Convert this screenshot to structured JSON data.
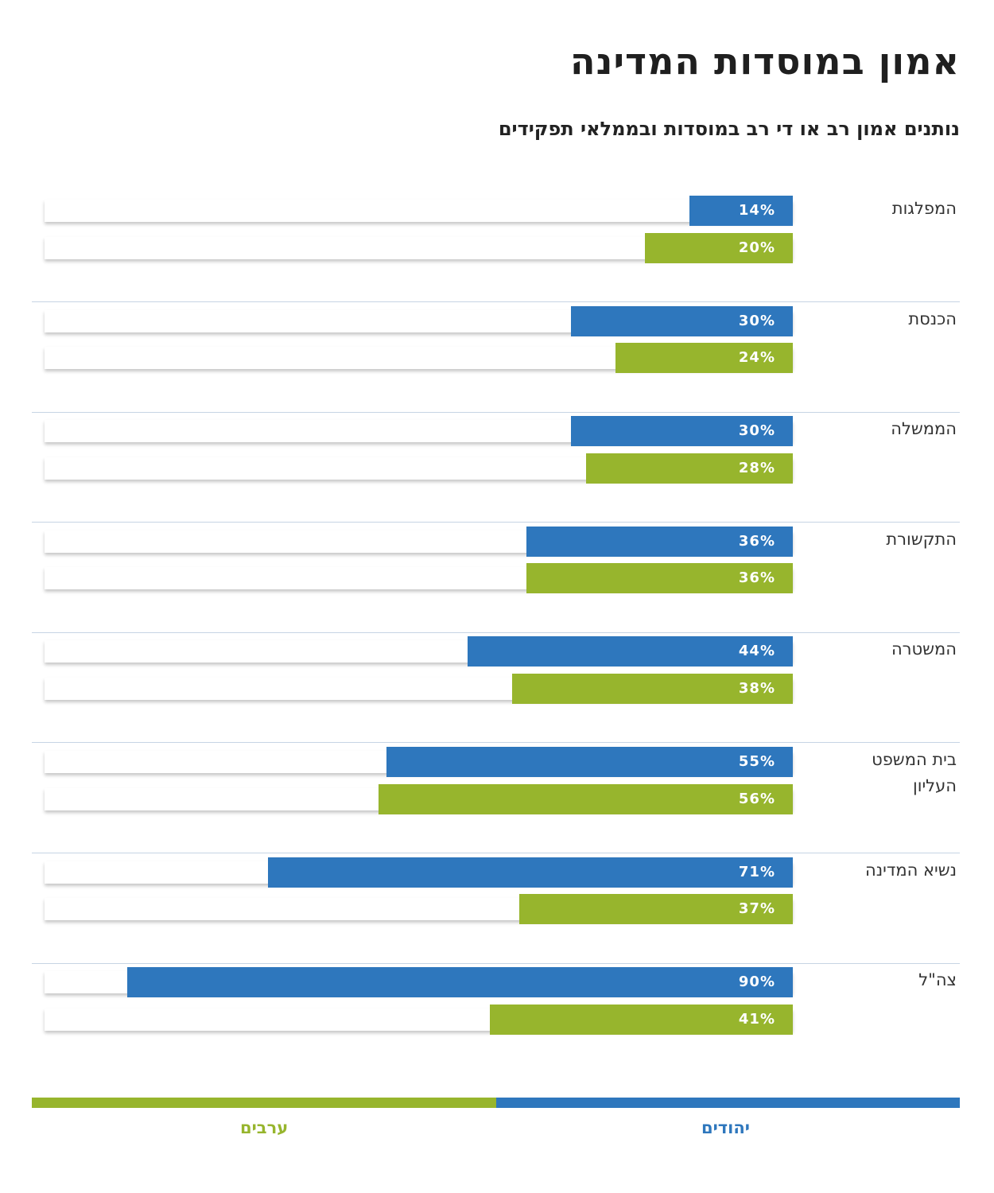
{
  "colors": {
    "jews": "#2e77bd",
    "arabs": "#97b52d"
  },
  "chart_data": {
    "type": "bar",
    "orientation": "horizontal",
    "title": "אמון במוסדות המדינה",
    "subtitle": "נותנים אמון רב או די רב במוסדות ובממלאי תפקידים",
    "unit": "%",
    "categories": [
      "המפלגות",
      "הכנסת",
      "הממשלה",
      "התקשורת",
      "המשטרה",
      "בית המשפט העליון",
      "נשיא המדינה",
      "צה\"ל"
    ],
    "series": [
      {
        "name": "יהודים",
        "color": "#2e77bd",
        "values": [
          14,
          30,
          30,
          36,
          44,
          55,
          71,
          90
        ]
      },
      {
        "name": "ערבים",
        "color": "#97b52d",
        "values": [
          20,
          24,
          28,
          36,
          38,
          56,
          37,
          41
        ]
      }
    ],
    "xlim": [
      0,
      100
    ],
    "legend": "bottom",
    "grid": false
  }
}
